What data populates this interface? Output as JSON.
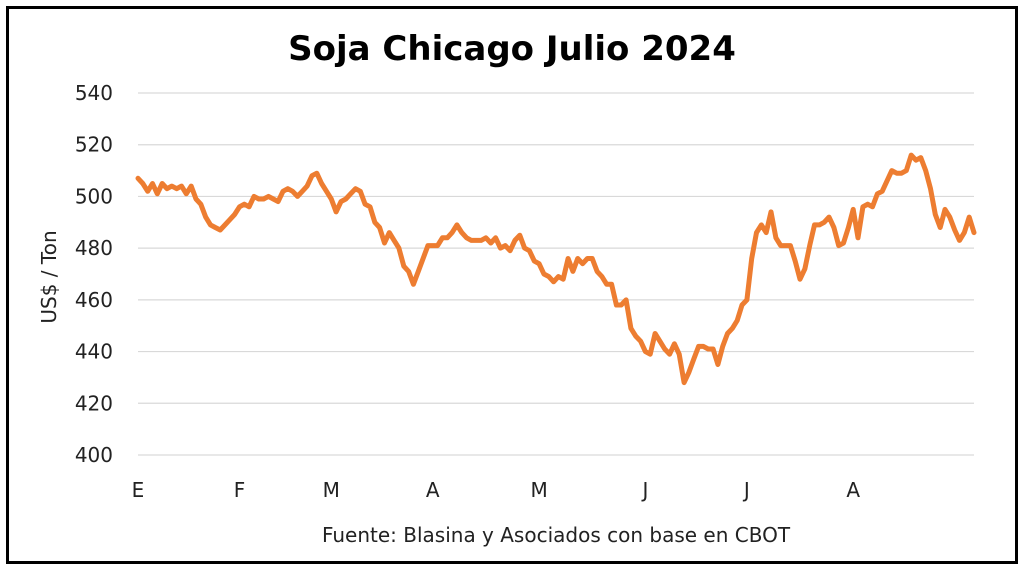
{
  "chart_data": {
    "type": "line",
    "title": "Soja Chicago Julio 2024",
    "ylabel": "US$ / Ton",
    "xlabel": "",
    "source": "Fuente: Blasina y Asociados con base en CBOT",
    "ylim": [
      400,
      540
    ],
    "yticks": [
      400,
      420,
      440,
      460,
      480,
      500,
      520,
      540
    ],
    "grid": true,
    "line_color": "#ED7D31",
    "xticks": [
      {
        "label": "E",
        "at": 0
      },
      {
        "label": "F",
        "at": 21
      },
      {
        "label": "M",
        "at": 40
      },
      {
        "label": "A",
        "at": 61
      },
      {
        "label": "M",
        "at": 83
      },
      {
        "label": "J",
        "at": 105
      },
      {
        "label": "J",
        "at": 126
      },
      {
        "label": "A",
        "at": 148
      }
    ],
    "series": [
      {
        "values": [
          507,
          505,
          502,
          505,
          501,
          505,
          503,
          504,
          503,
          504,
          501,
          504,
          499,
          497,
          492,
          489,
          488,
          487,
          489,
          491,
          493,
          496,
          497,
          496,
          500,
          499,
          499,
          500,
          499,
          498,
          502,
          503,
          502,
          500,
          502,
          504,
          508,
          509,
          505,
          502,
          499,
          494,
          498,
          499,
          501,
          503,
          502,
          497,
          496,
          490,
          488,
          482,
          486,
          483,
          480,
          473,
          471,
          466,
          471,
          476,
          481,
          481,
          481,
          484,
          484,
          486,
          489,
          486,
          484,
          483,
          483,
          483,
          484,
          482,
          484,
          480,
          481,
          479,
          483,
          485,
          480,
          479,
          475,
          474,
          470,
          469,
          467,
          469,
          468,
          476,
          471,
          476,
          474,
          476,
          476,
          471,
          469,
          466,
          466,
          458,
          458,
          460,
          449,
          446,
          444,
          440,
          439,
          447,
          444,
          441,
          439,
          443,
          439,
          428,
          432,
          437,
          442,
          442,
          441,
          441,
          435,
          442,
          447,
          449,
          452,
          458,
          460,
          476,
          486,
          489,
          486,
          494,
          484,
          481,
          481,
          481,
          475,
          468,
          472,
          481,
          489,
          489,
          490,
          492,
          488,
          481,
          482,
          488,
          495,
          484,
          496,
          497,
          496,
          501,
          502,
          506,
          510,
          509,
          509,
          510,
          516,
          514,
          515,
          510,
          503,
          493,
          488,
          495,
          492,
          487,
          483,
          486,
          492,
          486
        ]
      }
    ]
  }
}
